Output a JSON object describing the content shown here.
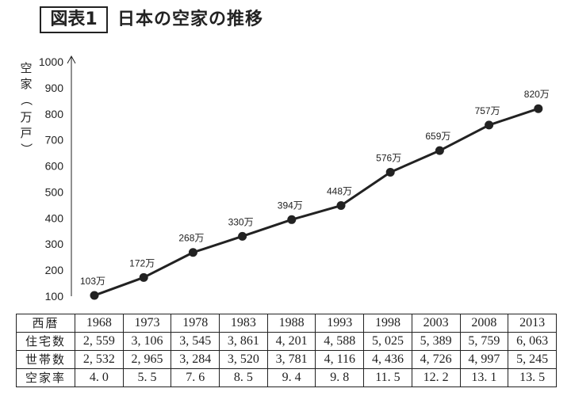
{
  "header": {
    "figure_label": "図表1",
    "title": "日本の空家の推移"
  },
  "chart_data": {
    "type": "line",
    "title": "日本の空家の推移",
    "xlabel": "",
    "ylabel": "空家（万戸）",
    "ylim": [
      100,
      1000
    ],
    "yticks": [
      100,
      200,
      300,
      400,
      500,
      600,
      700,
      800,
      900,
      1000
    ],
    "categories": [
      "1968",
      "1973",
      "1978",
      "1983",
      "1988",
      "1993",
      "1998",
      "2003",
      "2008",
      "2013"
    ],
    "values": [
      103,
      172,
      268,
      330,
      394,
      448,
      576,
      659,
      757,
      820
    ],
    "data_labels": [
      "103万",
      "172万",
      "268万",
      "330万",
      "394万",
      "448万",
      "576万",
      "659万",
      "757万",
      "820万"
    ],
    "colors": {
      "line": "#222222",
      "marker": "#222222"
    }
  },
  "table": {
    "rows": [
      {
        "head": "西暦",
        "cells": [
          "1968",
          "1973",
          "1978",
          "1983",
          "1988",
          "1993",
          "1998",
          "2003",
          "2008",
          "2013"
        ]
      },
      {
        "head": "住宅数",
        "cells": [
          "2, 559",
          "3, 106",
          "3, 545",
          "3, 861",
          "4, 201",
          "4, 588",
          "5, 025",
          "5, 389",
          "5, 759",
          "6, 063"
        ]
      },
      {
        "head": "世帯数",
        "cells": [
          "2, 532",
          "2, 965",
          "3, 284",
          "3, 520",
          "3, 781",
          "4, 116",
          "4, 436",
          "4, 726",
          "4, 997",
          "5, 245"
        ]
      },
      {
        "head": "空家率",
        "cells": [
          "4. 0",
          "5. 5",
          "7. 6",
          "8. 5",
          "9. 4",
          "9. 8",
          "11. 5",
          "12. 2",
          "13. 1",
          "13. 5"
        ]
      }
    ]
  }
}
